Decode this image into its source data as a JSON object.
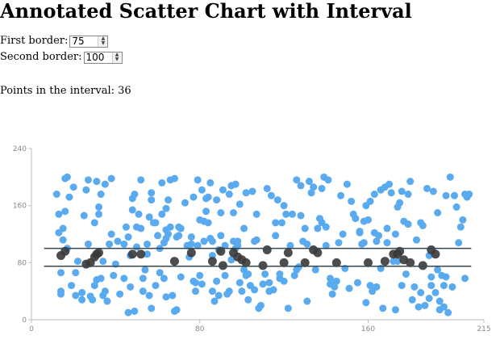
{
  "page": {
    "title": "Annotated Scatter Chart with Interval",
    "first_border_label": "First border:",
    "first_border_value": "75",
    "second_border_label": "Second border:",
    "second_border_value": "100",
    "count_label": "Points in the interval:",
    "count_value": "36"
  },
  "colors": {
    "outside_point": "#5aaaf0",
    "inside_point": "#3a3a3a",
    "border_line": "#37474f"
  },
  "chart_data": {
    "type": "scatter",
    "title": "",
    "xlabel": "",
    "ylabel": "",
    "xlim": [
      0,
      215
    ],
    "ylim": [
      0,
      240
    ],
    "xticks": [
      0,
      80,
      160,
      215
    ],
    "yticks": [
      0,
      80,
      160,
      240
    ],
    "borders": [
      75,
      100
    ],
    "series": [
      {
        "values": [
          [
            12,
            176
          ],
          [
            13,
            148
          ],
          [
            13,
            122
          ],
          [
            14,
            66
          ],
          [
            14,
            36
          ],
          [
            14,
            40
          ],
          [
            15,
            112
          ],
          [
            15,
            128
          ],
          [
            16,
            152
          ],
          [
            16,
            198
          ],
          [
            17,
            200
          ],
          [
            17,
            100
          ],
          [
            18,
            172
          ],
          [
            19,
            48
          ],
          [
            20,
            186
          ],
          [
            21,
            34
          ],
          [
            21,
            66
          ],
          [
            22,
            82
          ],
          [
            24,
            28
          ],
          [
            24,
            38
          ],
          [
            25,
            146
          ],
          [
            26,
            182
          ],
          [
            27,
            196
          ],
          [
            27,
            106
          ],
          [
            28,
            33
          ],
          [
            29,
            28
          ],
          [
            30,
            48
          ],
          [
            30,
            136
          ],
          [
            31,
            56
          ],
          [
            31,
            194
          ],
          [
            32,
            158
          ],
          [
            32,
            148
          ],
          [
            33,
            58
          ],
          [
            33,
            176
          ],
          [
            34,
            82
          ],
          [
            34,
            34
          ],
          [
            35,
            190
          ],
          [
            35,
            40
          ],
          [
            36,
            26
          ],
          [
            37,
            106
          ],
          [
            38,
            198
          ],
          [
            38,
            120
          ],
          [
            39,
            62
          ],
          [
            40,
            78
          ],
          [
            41,
            110
          ],
          [
            42,
            36
          ],
          [
            44,
            58
          ],
          [
            44,
            106
          ],
          [
            45,
            130
          ],
          [
            46,
            10
          ],
          [
            46,
            116
          ],
          [
            47,
            46
          ],
          [
            47,
            90
          ],
          [
            48,
            154
          ],
          [
            48,
            170
          ],
          [
            49,
            12
          ],
          [
            49,
            176
          ],
          [
            50,
            102
          ],
          [
            50,
            130
          ],
          [
            51,
            148
          ],
          [
            52,
            196
          ],
          [
            52,
            128
          ],
          [
            53,
            40
          ],
          [
            53,
            58
          ],
          [
            54,
            70
          ],
          [
            55,
            92
          ],
          [
            55,
            106
          ],
          [
            56,
            34
          ],
          [
            56,
            144
          ],
          [
            57,
            168
          ],
          [
            57,
            178
          ],
          [
            57,
            16
          ],
          [
            58,
            136
          ],
          [
            59,
            48
          ],
          [
            59,
            136
          ],
          [
            60,
            118
          ],
          [
            61,
            100
          ],
          [
            61,
            66
          ],
          [
            62,
            192
          ],
          [
            62,
            148
          ],
          [
            63,
            108
          ],
          [
            63,
            58
          ],
          [
            64,
            126
          ],
          [
            64,
            32
          ],
          [
            64,
            156
          ],
          [
            64,
            114
          ],
          [
            65,
            120
          ],
          [
            65,
            168
          ],
          [
            66,
            196
          ],
          [
            66,
            130
          ],
          [
            67,
            34
          ],
          [
            68,
            12
          ],
          [
            68,
            198
          ],
          [
            69,
            14
          ],
          [
            69,
            116
          ],
          [
            70,
            118
          ],
          [
            70,
            130
          ],
          [
            71,
            128
          ],
          [
            71,
            60
          ],
          [
            73,
            164
          ],
          [
            74,
            104
          ],
          [
            75,
            88
          ],
          [
            76,
            106
          ],
          [
            76,
            116
          ],
          [
            77,
            172
          ],
          [
            77,
            54
          ],
          [
            78,
            40
          ],
          [
            78,
            52
          ],
          [
            79,
            104
          ],
          [
            79,
            196
          ],
          [
            80,
            140
          ],
          [
            80,
            62
          ],
          [
            81,
            182
          ],
          [
            81,
            50
          ],
          [
            82,
            110
          ],
          [
            82,
            138
          ],
          [
            83,
            152
          ],
          [
            83,
            170
          ],
          [
            84,
            172
          ],
          [
            84,
            136
          ],
          [
            85,
            114
          ],
          [
            85,
            192
          ],
          [
            86,
            90
          ],
          [
            86,
            40
          ],
          [
            86,
            110
          ],
          [
            87,
            26
          ],
          [
            88,
            168
          ],
          [
            88,
            54
          ],
          [
            89,
            98
          ],
          [
            89,
            34
          ],
          [
            90,
            150
          ],
          [
            90,
            118
          ],
          [
            91,
            182
          ],
          [
            92,
            62
          ],
          [
            92,
            104
          ],
          [
            93,
            36
          ],
          [
            94,
            176
          ],
          [
            94,
            40
          ],
          [
            95,
            188
          ],
          [
            95,
            84
          ],
          [
            96,
            110
          ],
          [
            96,
            150
          ],
          [
            97,
            100
          ],
          [
            97,
            190
          ],
          [
            98,
            104
          ],
          [
            98,
            110
          ],
          [
            99,
            52
          ],
          [
            99,
            162
          ],
          [
            100,
            40
          ],
          [
            101,
            70
          ],
          [
            101,
            128
          ],
          [
            102,
            178
          ],
          [
            102,
            62
          ],
          [
            103,
            28
          ],
          [
            103,
            64
          ],
          [
            104,
            48
          ],
          [
            105,
            180
          ],
          [
            106,
            42
          ],
          [
            106,
            110
          ],
          [
            107,
            148
          ],
          [
            107,
            112
          ],
          [
            108,
            16
          ],
          [
            109,
            20
          ],
          [
            110,
            50
          ],
          [
            111,
            64
          ],
          [
            112,
            184
          ],
          [
            113,
            52
          ],
          [
            113,
            40
          ],
          [
            114,
            174
          ],
          [
            115,
            42
          ],
          [
            116,
            118
          ],
          [
            116,
            136
          ],
          [
            117,
            168
          ],
          [
            118,
            58
          ],
          [
            118,
            64
          ],
          [
            119,
            136
          ],
          [
            120,
            160
          ],
          [
            120,
            54
          ],
          [
            121,
            148
          ],
          [
            122,
            16
          ],
          [
            123,
            104
          ],
          [
            124,
            148
          ],
          [
            125,
            62
          ],
          [
            126,
            196
          ],
          [
            126,
            70
          ],
          [
            127,
            74
          ],
          [
            128,
            188
          ],
          [
            128,
            146
          ],
          [
            129,
            110
          ],
          [
            130,
            128
          ],
          [
            131,
            106
          ],
          [
            131,
            26
          ],
          [
            132,
            194
          ],
          [
            133,
            178
          ],
          [
            134,
            186
          ],
          [
            135,
            70
          ],
          [
            136,
            128
          ],
          [
            137,
            142
          ],
          [
            138,
            184
          ],
          [
            138,
            136
          ],
          [
            139,
            200
          ],
          [
            140,
            130
          ],
          [
            140,
            104
          ],
          [
            141,
            196
          ],
          [
            142,
            50
          ],
          [
            142,
            58
          ],
          [
            143,
            36
          ],
          [
            144,
            46
          ],
          [
            145,
            54
          ],
          [
            146,
            108
          ],
          [
            147,
            174
          ],
          [
            148,
            120
          ],
          [
            149,
            72
          ],
          [
            150,
            190
          ],
          [
            151,
            44
          ],
          [
            152,
            166
          ],
          [
            153,
            148
          ],
          [
            154,
            142
          ],
          [
            155,
            52
          ],
          [
            156,
            124
          ],
          [
            156,
            122
          ],
          [
            157,
            106
          ],
          [
            158,
            108
          ],
          [
            158,
            138
          ],
          [
            159,
            24
          ],
          [
            159,
            160
          ],
          [
            160,
            140
          ],
          [
            161,
            166
          ],
          [
            161,
            48
          ],
          [
            162,
            40
          ],
          [
            163,
            122
          ],
          [
            163,
            176
          ],
          [
            164,
            46
          ],
          [
            164,
            110
          ],
          [
            165,
            118
          ],
          [
            166,
            72
          ],
          [
            166,
            182
          ],
          [
            167,
            16
          ],
          [
            168,
            186
          ],
          [
            169,
            108
          ],
          [
            169,
            128
          ],
          [
            170,
            190
          ],
          [
            171,
            178
          ],
          [
            172,
            82
          ],
          [
            173,
            14
          ],
          [
            173,
            120
          ],
          [
            174,
            82
          ],
          [
            174,
            158
          ],
          [
            175,
            164
          ],
          [
            176,
            48
          ],
          [
            176,
            180
          ],
          [
            177,
            138
          ],
          [
            178,
            64
          ],
          [
            179,
            134
          ],
          [
            179,
            176
          ],
          [
            180,
            194
          ],
          [
            181,
            28
          ],
          [
            182,
            46
          ],
          [
            183,
            112
          ],
          [
            184,
            18
          ],
          [
            185,
            38
          ],
          [
            185,
            136
          ],
          [
            186,
            132
          ],
          [
            187,
            20
          ],
          [
            188,
            184
          ],
          [
            189,
            30
          ],
          [
            189,
            90
          ],
          [
            190,
            60
          ],
          [
            190,
            48
          ],
          [
            191,
            180
          ],
          [
            192,
            38
          ],
          [
            193,
            70
          ],
          [
            193,
            150
          ],
          [
            194,
            14
          ],
          [
            194,
            26
          ],
          [
            195,
            62
          ],
          [
            196,
            18
          ],
          [
            196,
            48
          ],
          [
            197,
            60
          ],
          [
            197,
            174
          ],
          [
            198,
            10
          ],
          [
            199,
            200
          ],
          [
            200,
            46
          ],
          [
            201,
            174
          ],
          [
            202,
            158
          ],
          [
            203,
            108
          ],
          [
            204,
            130
          ],
          [
            205,
            140
          ],
          [
            206,
            176
          ],
          [
            206,
            58
          ],
          [
            207,
            172
          ],
          [
            208,
            176
          ]
        ]
      },
      {
        "values": [
          [
            14,
            90
          ],
          [
            16,
            96
          ],
          [
            26,
            78
          ],
          [
            28,
            80
          ],
          [
            30,
            88
          ],
          [
            31,
            92
          ],
          [
            32,
            94
          ],
          [
            48,
            92
          ],
          [
            52,
            92
          ],
          [
            68,
            82
          ],
          [
            76,
            94
          ],
          [
            86,
            82
          ],
          [
            90,
            96
          ],
          [
            91,
            76
          ],
          [
            96,
            94
          ],
          [
            98,
            88
          ],
          [
            100,
            84
          ],
          [
            102,
            80
          ],
          [
            110,
            76
          ],
          [
            112,
            98
          ],
          [
            120,
            80
          ],
          [
            122,
            94
          ],
          [
            130,
            80
          ],
          [
            134,
            98
          ],
          [
            136,
            94
          ],
          [
            145,
            80
          ],
          [
            160,
            80
          ],
          [
            168,
            82
          ],
          [
            172,
            92
          ],
          [
            174,
            92
          ],
          [
            175,
            96
          ],
          [
            177,
            84
          ],
          [
            180,
            80
          ],
          [
            186,
            76
          ],
          [
            190,
            98
          ],
          [
            192,
            92
          ]
        ]
      }
    ]
  }
}
